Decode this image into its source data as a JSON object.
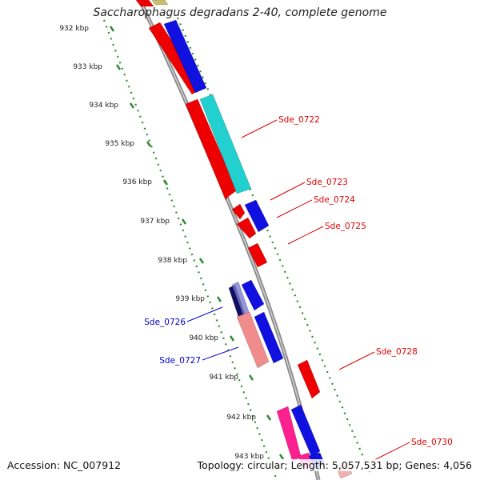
{
  "header": {
    "title": "Saccharophagus degradans 2-40, complete genome"
  },
  "footer": {
    "accession": "Accession: NC_007912",
    "summary": "Topology: circular; Length: 5,057,531 bp; Genes: 4,056"
  },
  "scale": {
    "unit_suffix": "kbp",
    "ticks_kbp": [
      932,
      933,
      934,
      935,
      936,
      937,
      938,
      939,
      940,
      941,
      942,
      943
    ]
  },
  "colors": {
    "backbone": "#8a8a8a",
    "tick_dots": "#2e8b2e",
    "forward_blue": "#1010e0",
    "reverse_red": "#ee0000",
    "cyan": "#22d0d0",
    "pink": "#f08c8c",
    "magenta": "#ff2090",
    "navy": "#101060",
    "olive": "#c8c070",
    "label_red": "#dd0000",
    "label_blue": "#0000cc"
  },
  "gene_labels": [
    {
      "name": "Sde_0722",
      "color": "label_red"
    },
    {
      "name": "Sde_0723",
      "color": "label_red"
    },
    {
      "name": "Sde_0724",
      "color": "label_red"
    },
    {
      "name": "Sde_0725",
      "color": "label_red"
    },
    {
      "name": "Sde_0726",
      "color": "label_blue"
    },
    {
      "name": "Sde_0727",
      "color": "label_blue"
    },
    {
      "name": "Sde_0728",
      "color": "label_red"
    },
    {
      "name": "Sde_0730",
      "color": "label_red"
    }
  ]
}
